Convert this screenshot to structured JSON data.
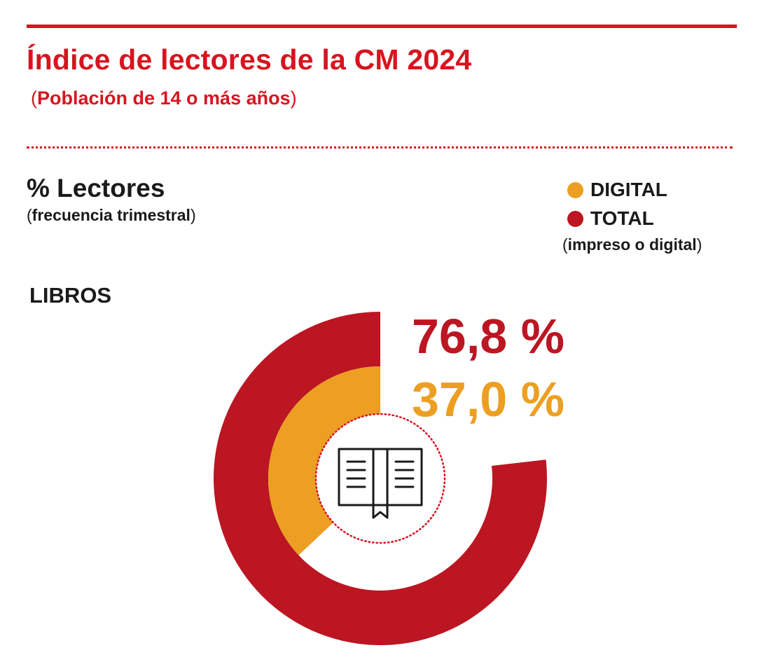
{
  "header": {
    "title": "Índice de lectores de la CM 2024",
    "subtitle_open": "(",
    "subtitle": "Población de 14 o más años",
    "subtitle_close": ")"
  },
  "metric": {
    "title": "% Lectores",
    "sub_open": "(",
    "sub": "frecuencia trimestral",
    "sub_close": ")"
  },
  "legend": {
    "digital": "DIGITAL",
    "total": "TOTAL",
    "note_open": "(",
    "note": "impreso o digital",
    "note_close": ")"
  },
  "section": {
    "label": "LIBROS"
  },
  "icons": {
    "center": "open-book-icon"
  },
  "colors": {
    "brand_red": "#d7141f",
    "total": "#bb1622",
    "digital": "#ec9f22",
    "text": "#1a1a1a"
  },
  "chart_data": {
    "type": "pie",
    "subtype": "nested-donut",
    "title": "LIBROS",
    "series": [
      {
        "name": "TOTAL",
        "value": 76.8,
        "label": "76,8 %",
        "ring": "outer",
        "color": "#bb1622"
      },
      {
        "name": "DIGITAL",
        "value": 37.0,
        "label": "37,0 %",
        "ring": "inner",
        "color": "#ec9f22"
      }
    ],
    "max": 100,
    "start_angle": "12 o'clock",
    "direction": "counterclockwise",
    "legend_position": "top-right"
  }
}
